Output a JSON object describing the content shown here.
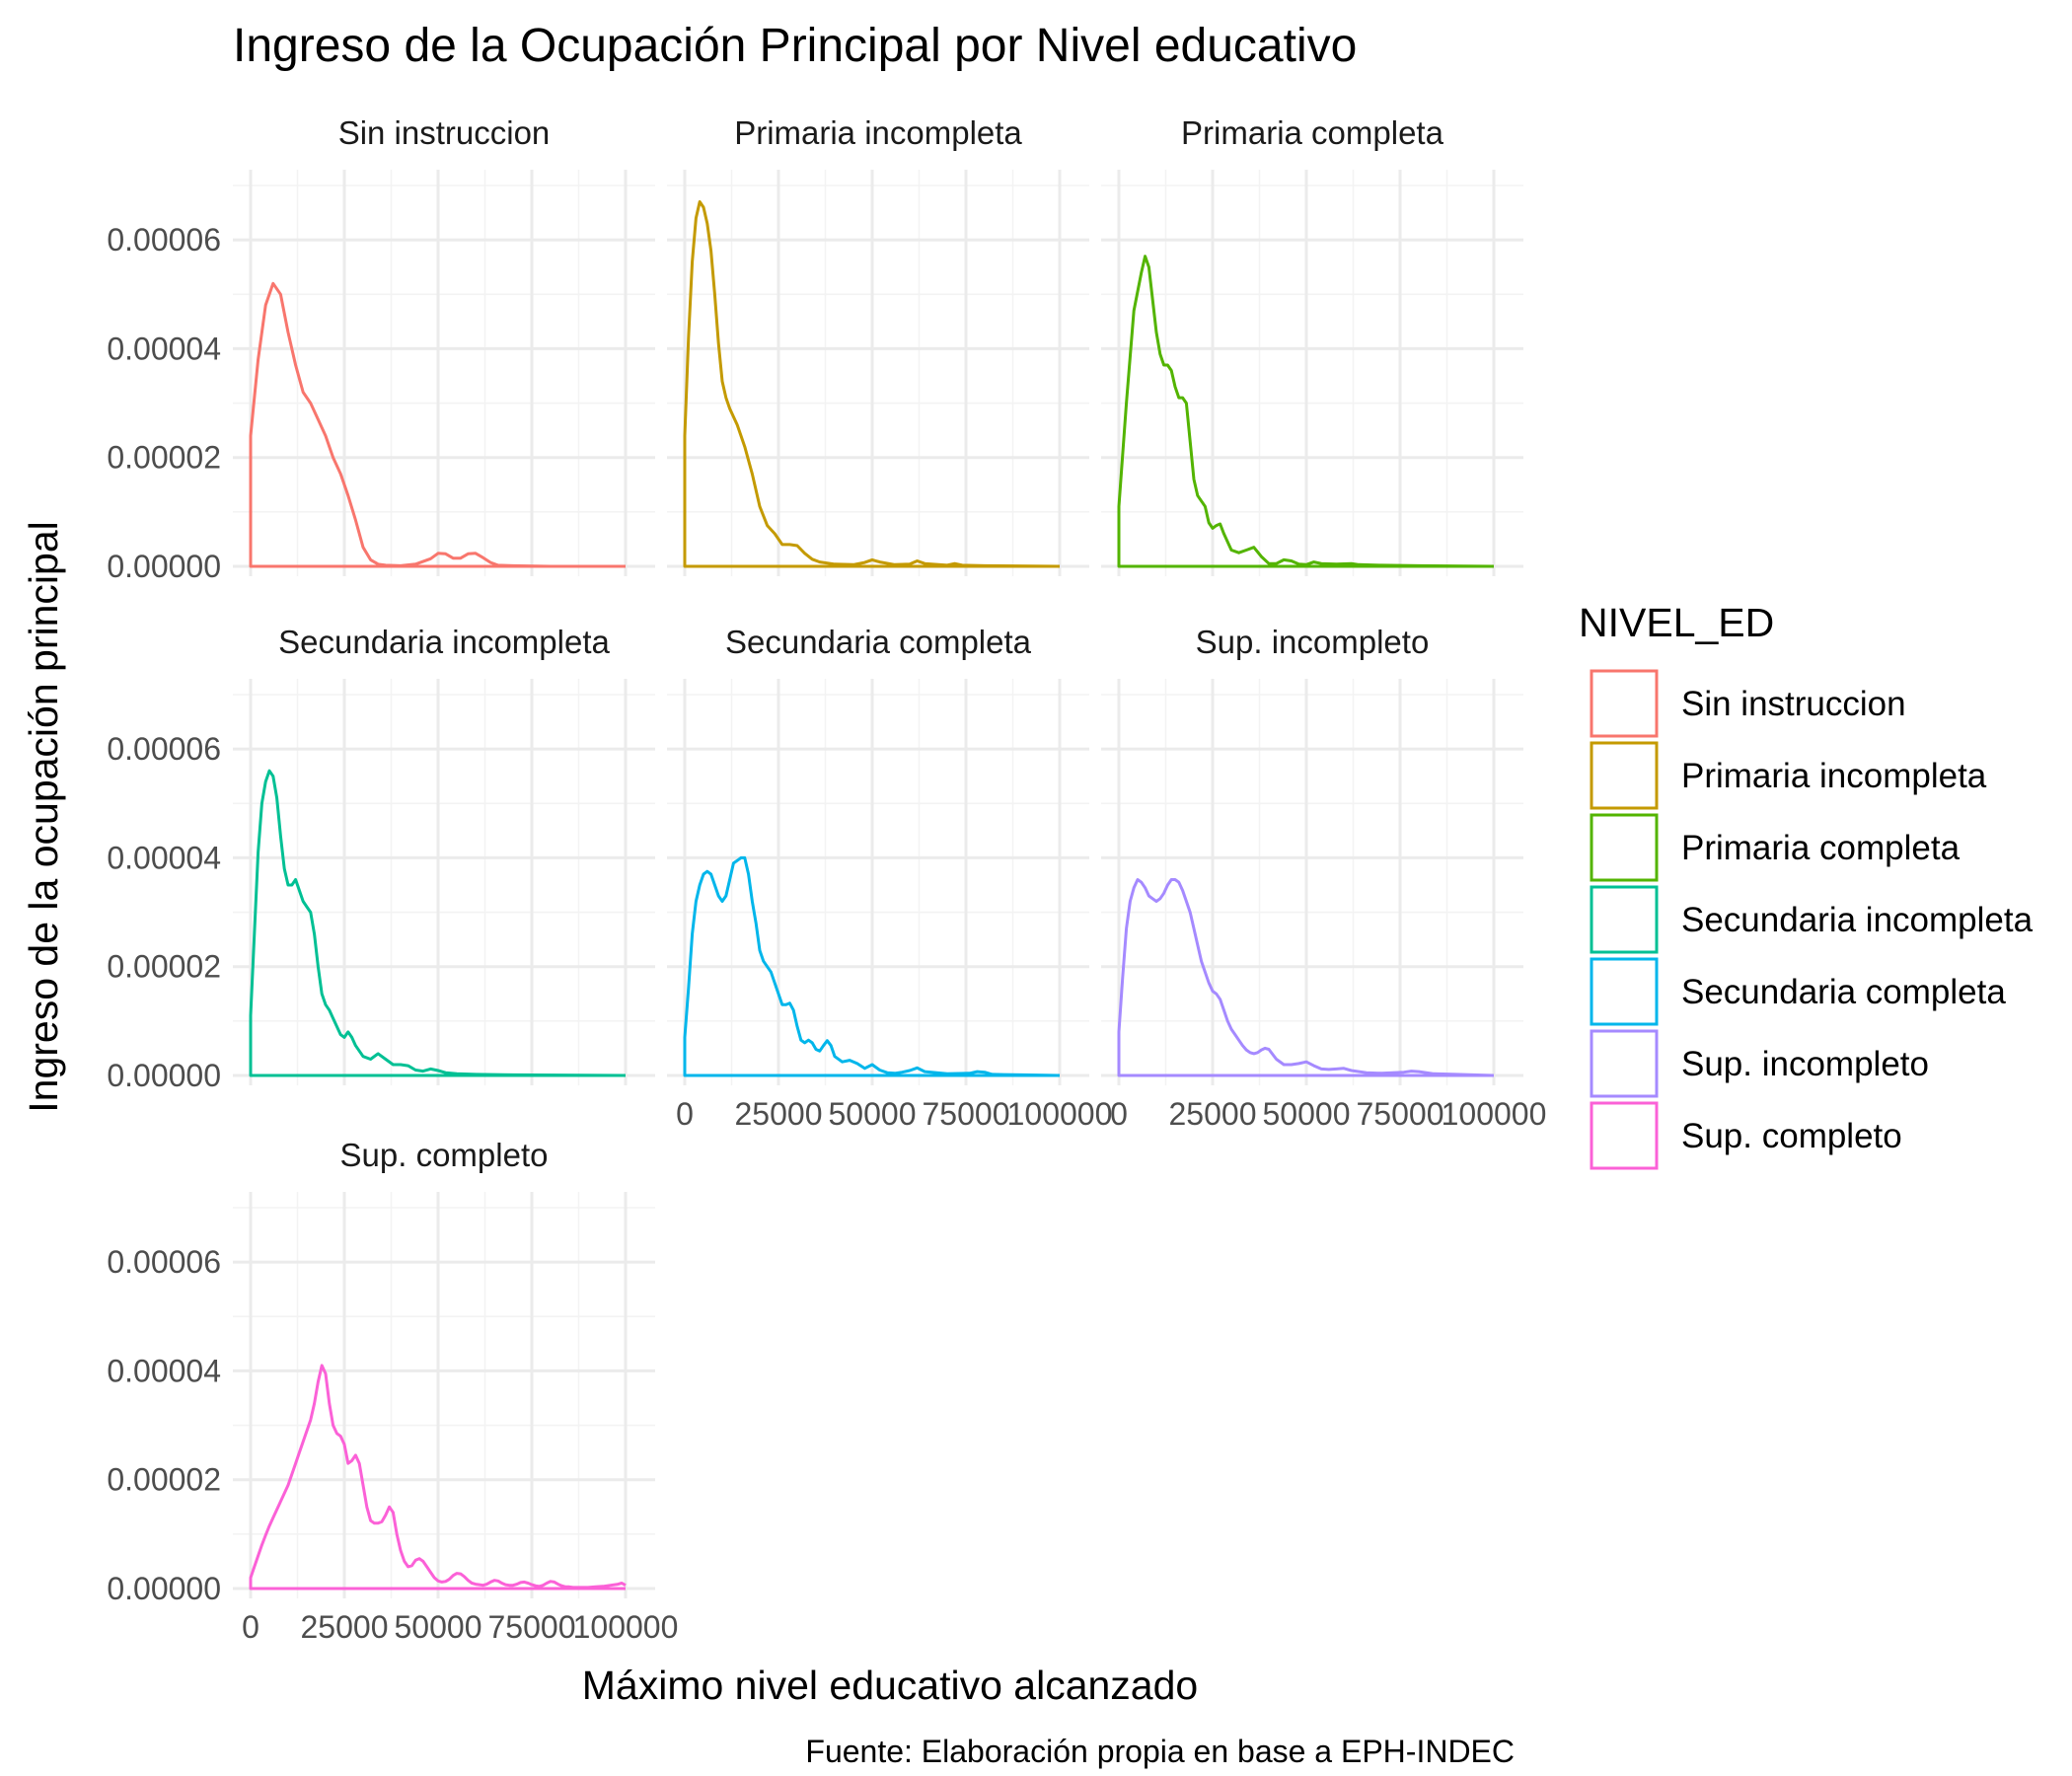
{
  "title": "Ingreso de la Ocupación Principal por Nivel educativo",
  "caption": "Fuente: Elaboración propia en base a EPH-INDEC",
  "colors": {
    "Sin instruccion": "#F8766D",
    "Primaria incompleta": "#C49A00",
    "Primaria completa": "#53B400",
    "Secundaria incompleta": "#00C094",
    "Secundaria completa": "#00B6EB",
    "Sup. incompleto": "#A58AFF",
    "Sup. completo": "#FB61D7"
  },
  "chart_data": {
    "type": "line",
    "subtype": "faceted density",
    "xlabel": "Máximo nivel educativo alcanzado",
    "ylabel": "Ingreso de la ocupación principal",
    "xlim": [
      0,
      100000
    ],
    "ylim": [
      0,
      7e-05
    ],
    "x_ticks": [
      "0",
      "25000",
      "50000",
      "75000",
      "100000"
    ],
    "x_tick_values": [
      0,
      25000,
      50000,
      75000,
      100000
    ],
    "y_ticks": [
      "0.00000",
      "0.00002",
      "0.00004",
      "0.00006"
    ],
    "y_tick_values": [
      0,
      2e-05,
      4e-05,
      6e-05
    ],
    "grid": true,
    "legend": {
      "title": "NIVEL_ED",
      "position": "right"
    },
    "series": [
      {
        "name": "Sin instruccion",
        "x": [
          0,
          0,
          2000,
          4000,
          6000,
          8000,
          10000,
          12000,
          14000,
          16000,
          18000,
          20000,
          22000,
          24000,
          26000,
          28000,
          30000,
          32000,
          34000,
          36000,
          40000,
          44000,
          48000,
          50000,
          52000,
          54000,
          56000,
          58000,
          60000,
          62000,
          64000,
          66000,
          70000,
          80000,
          100000
        ],
        "y": [
          0,
          2.4e-05,
          3.8e-05,
          4.8e-05,
          5.2e-05,
          5e-05,
          4.3e-05,
          3.7e-05,
          3.2e-05,
          3e-05,
          2.7e-05,
          2.4e-05,
          2e-05,
          1.7e-05,
          1.3e-05,
          8.5e-06,
          3.5e-06,
          1.2e-06,
          4e-07,
          2e-07,
          1e-07,
          4e-07,
          1.4e-06,
          2.4e-06,
          2.3e-06,
          1.5e-06,
          1.5e-06,
          2.3e-06,
          2.4e-06,
          1.6e-06,
          7e-07,
          2e-07,
          1e-07,
          0,
          0
        ]
      },
      {
        "name": "Primaria incompleta",
        "x": [
          0,
          0,
          1000,
          2000,
          3000,
          4000,
          5000,
          6000,
          7000,
          8000,
          9000,
          10000,
          11000,
          12000,
          14000,
          16000,
          18000,
          20000,
          22000,
          24000,
          26000,
          28000,
          30000,
          32000,
          34000,
          36000,
          40000,
          45000,
          48000,
          50000,
          52000,
          56000,
          60000,
          62000,
          64000,
          70000,
          72000,
          74000,
          80000,
          100000
        ],
        "y": [
          0,
          2.4e-05,
          4.2e-05,
          5.6e-05,
          6.4e-05,
          6.7e-05,
          6.6e-05,
          6.3e-05,
          5.8e-05,
          5e-05,
          4.1e-05,
          3.4e-05,
          3.1e-05,
          2.9e-05,
          2.6e-05,
          2.2e-05,
          1.7e-05,
          1.1e-05,
          7.5e-06,
          6e-06,
          4e-06,
          4e-06,
          3.8e-06,
          2.4e-06,
          1.3e-06,
          8e-07,
          4e-07,
          3e-07,
          7e-07,
          1.2e-06,
          8e-07,
          3e-07,
          4e-07,
          1e-06,
          5e-07,
          2e-07,
          5e-07,
          2e-07,
          1e-07,
          0
        ]
      },
      {
        "name": "Primaria completa",
        "x": [
          0,
          0,
          2000,
          4000,
          6000,
          7000,
          8000,
          9000,
          10000,
          11000,
          12000,
          13000,
          14000,
          15000,
          16000,
          17000,
          18000,
          19000,
          20000,
          21000,
          22000,
          23000,
          24000,
          25000,
          26000,
          27000,
          28000,
          30000,
          32000,
          34000,
          36000,
          38000,
          40000,
          42000,
          44000,
          46000,
          48000,
          50000,
          52000,
          54000,
          58000,
          62000,
          64000,
          70000,
          80000,
          100000
        ],
        "y": [
          0,
          1.1e-05,
          3e-05,
          4.7e-05,
          5.4e-05,
          5.7e-05,
          5.5e-05,
          4.9e-05,
          4.3e-05,
          3.9e-05,
          3.7e-05,
          3.7e-05,
          3.6e-05,
          3.3e-05,
          3.1e-05,
          3.1e-05,
          3e-05,
          2.3e-05,
          1.6e-05,
          1.3e-05,
          1.2e-05,
          1.1e-05,
          8e-06,
          7e-06,
          7.5e-06,
          7.8e-06,
          6e-06,
          3e-06,
          2.5e-06,
          3e-06,
          3.5e-06,
          1.8e-06,
          5e-07,
          5e-07,
          1.2e-06,
          1e-06,
          4e-07,
          3e-07,
          8e-07,
          5e-07,
          4e-07,
          5e-07,
          3e-07,
          2e-07,
          1e-07,
          0
        ]
      },
      {
        "name": "Secundaria incompleta",
        "x": [
          0,
          0,
          1000,
          2000,
          3000,
          4000,
          5000,
          6000,
          7000,
          8000,
          9000,
          10000,
          11000,
          12000,
          13000,
          14000,
          15000,
          16000,
          17000,
          18000,
          19000,
          20000,
          21000,
          22000,
          23000,
          24000,
          25000,
          26000,
          27000,
          28000,
          29000,
          30000,
          32000,
          34000,
          36000,
          38000,
          40000,
          42000,
          44000,
          46000,
          48000,
          50000,
          52000,
          55000,
          60000,
          70000,
          100000
        ],
        "y": [
          0,
          1.1e-05,
          2.6e-05,
          4.1e-05,
          5e-05,
          5.4e-05,
          5.6e-05,
          5.5e-05,
          5.1e-05,
          4.4e-05,
          3.8e-05,
          3.5e-05,
          3.5e-05,
          3.6e-05,
          3.4e-05,
          3.2e-05,
          3.1e-05,
          3e-05,
          2.6e-05,
          2e-05,
          1.5e-05,
          1.3e-05,
          1.2e-05,
          1.05e-05,
          9e-06,
          7.5e-06,
          7e-06,
          8e-06,
          7e-06,
          5.5e-06,
          4.5e-06,
          3.5e-06,
          3e-06,
          4e-06,
          3e-06,
          2e-06,
          2e-06,
          1.8e-06,
          1e-06,
          8e-07,
          1.2e-06,
          9e-07,
          5e-07,
          3e-07,
          2e-07,
          1e-07,
          0
        ]
      },
      {
        "name": "Secundaria completa",
        "x": [
          0,
          0,
          1000,
          2000,
          3000,
          4000,
          5000,
          6000,
          7000,
          8000,
          9000,
          10000,
          11000,
          12000,
          13000,
          14000,
          15000,
          16000,
          17000,
          18000,
          19000,
          20000,
          21000,
          22000,
          23000,
          24000,
          25000,
          26000,
          27000,
          28000,
          29000,
          30000,
          31000,
          32000,
          33000,
          34000,
          35000,
          36000,
          37000,
          38000,
          39000,
          40000,
          42000,
          44000,
          46000,
          48000,
          50000,
          52000,
          54000,
          56000,
          58000,
          60000,
          62000,
          64000,
          70000,
          76000,
          78000,
          80000,
          82000,
          90000,
          100000
        ],
        "y": [
          0,
          7e-06,
          1.6e-05,
          2.6e-05,
          3.2e-05,
          3.5e-05,
          3.7e-05,
          3.75e-05,
          3.7e-05,
          3.5e-05,
          3.3e-05,
          3.2e-05,
          3.3e-05,
          3.6e-05,
          3.9e-05,
          3.95e-05,
          4e-05,
          4e-05,
          3.7e-05,
          3.2e-05,
          2.8e-05,
          2.3e-05,
          2.1e-05,
          2e-05,
          1.9e-05,
          1.7e-05,
          1.5e-05,
          1.3e-05,
          1.3e-05,
          1.33e-05,
          1.2e-05,
          9e-06,
          6.5e-06,
          6e-06,
          6.5e-06,
          6e-06,
          4.8e-06,
          4.5e-06,
          5.5e-06,
          6.4e-06,
          5.5e-06,
          3.5e-06,
          2.5e-06,
          2.8e-06,
          2.2e-06,
          1.3e-06,
          2e-06,
          1e-06,
          5e-07,
          4e-07,
          6e-07,
          9e-07,
          1.4e-06,
          7e-07,
          3e-07,
          4e-07,
          7e-07,
          6e-07,
          2e-07,
          1e-07,
          0
        ]
      },
      {
        "name": "Sup. incompleto",
        "x": [
          0,
          0,
          1000,
          2000,
          3000,
          4000,
          5000,
          6000,
          7000,
          8000,
          9000,
          10000,
          11000,
          12000,
          13000,
          14000,
          15000,
          16000,
          17000,
          18000,
          19000,
          20000,
          21000,
          22000,
          23000,
          24000,
          25000,
          26000,
          27000,
          28000,
          29000,
          30000,
          31000,
          32000,
          33000,
          34000,
          35000,
          36000,
          37000,
          38000,
          39000,
          40000,
          42000,
          44000,
          46000,
          48000,
          50000,
          52000,
          54000,
          56000,
          58000,
          60000,
          62000,
          66000,
          70000,
          76000,
          78000,
          80000,
          84000,
          90000,
          100000
        ],
        "y": [
          0,
          8e-06,
          1.8e-05,
          2.7e-05,
          3.2e-05,
          3.45e-05,
          3.6e-05,
          3.55e-05,
          3.45e-05,
          3.3e-05,
          3.25e-05,
          3.2e-05,
          3.25e-05,
          3.35e-05,
          3.5e-05,
          3.6e-05,
          3.6e-05,
          3.55e-05,
          3.4e-05,
          3.2e-05,
          3e-05,
          2.7e-05,
          2.4e-05,
          2.1e-05,
          1.9e-05,
          1.7e-05,
          1.55e-05,
          1.5e-05,
          1.4e-05,
          1.2e-05,
          1e-05,
          8.5e-06,
          7.5e-06,
          6.5e-06,
          5.5e-06,
          4.7e-06,
          4.2e-06,
          4e-06,
          4.2e-06,
          4.7e-06,
          5e-06,
          4.8e-06,
          3e-06,
          2e-06,
          2e-06,
          2.2e-06,
          2.5e-06,
          1.8e-06,
          1.2e-06,
          1.1e-06,
          1.2e-06,
          1.3e-06,
          9e-07,
          5e-07,
          4e-07,
          6e-07,
          8e-07,
          7e-07,
          3e-07,
          2e-07,
          0
        ]
      },
      {
        "name": "Sup. completo",
        "x": [
          0,
          0,
          1000,
          2000,
          3000,
          4000,
          5000,
          6000,
          7000,
          8000,
          9000,
          10000,
          11000,
          12000,
          13000,
          14000,
          15000,
          16000,
          17000,
          18000,
          19000,
          20000,
          21000,
          22000,
          23000,
          24000,
          25000,
          26000,
          27000,
          28000,
          29000,
          30000,
          31000,
          32000,
          33000,
          34000,
          35000,
          36000,
          37000,
          38000,
          39000,
          40000,
          41000,
          42000,
          43000,
          44000,
          45000,
          46000,
          47000,
          48000,
          49000,
          50000,
          51000,
          52000,
          53000,
          54000,
          55000,
          56000,
          57000,
          58000,
          59000,
          60000,
          61000,
          62000,
          63000,
          64000,
          65000,
          66000,
          67000,
          68000,
          69000,
          70000,
          71000,
          72000,
          73000,
          74000,
          75000,
          76000,
          77000,
          78000,
          79000,
          80000,
          81000,
          82000,
          83000,
          84000,
          85000,
          86000,
          87000,
          88000,
          90000,
          92000,
          94000,
          96000,
          98000,
          99000,
          100000
        ],
        "y": [
          0,
          2e-06,
          4e-06,
          6e-06,
          8e-06,
          9.8e-06,
          1.15e-05,
          1.3e-05,
          1.45e-05,
          1.6e-05,
          1.75e-05,
          1.9e-05,
          2.1e-05,
          2.3e-05,
          2.5e-05,
          2.7e-05,
          2.9e-05,
          3.1e-05,
          3.4e-05,
          3.8e-05,
          4.1e-05,
          3.95e-05,
          3.4e-05,
          3e-05,
          2.85e-05,
          2.8e-05,
          2.65e-05,
          2.3e-05,
          2.35e-05,
          2.45e-05,
          2.3e-05,
          1.9e-05,
          1.5e-05,
          1.25e-05,
          1.2e-05,
          1.2e-05,
          1.23e-05,
          1.35e-05,
          1.5e-05,
          1.4e-05,
          1e-05,
          7e-06,
          5e-06,
          4e-06,
          4.2e-06,
          5.2e-06,
          5.5e-06,
          5e-06,
          4e-06,
          3e-06,
          2e-06,
          1.4e-06,
          1.2e-06,
          1.3e-06,
          1.7e-06,
          2.4e-06,
          2.8e-06,
          2.7e-06,
          2.2e-06,
          1.5e-06,
          1e-06,
          8e-07,
          7e-07,
          6e-07,
          8e-07,
          1.2e-06,
          1.5e-06,
          1.4e-06,
          1e-06,
          7e-07,
          6e-07,
          6e-07,
          8e-07,
          1.1e-06,
          1.2e-06,
          1e-06,
          7e-07,
          5e-07,
          4e-07,
          6e-07,
          1e-06,
          1.3e-06,
          1.2e-06,
          8e-07,
          5e-07,
          3e-07,
          3e-07,
          2e-07,
          2e-07,
          2e-07,
          2e-07,
          3e-07,
          4e-07,
          6e-07,
          8e-07,
          1e-06,
          6e-07
        ]
      }
    ]
  }
}
